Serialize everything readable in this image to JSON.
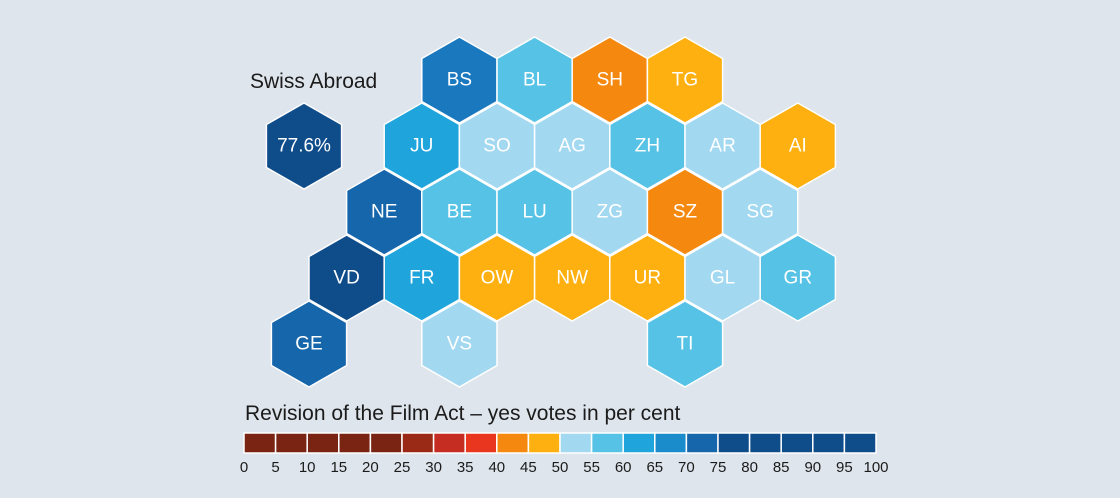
{
  "title": "Revision of the Film Act – yes votes in per cent",
  "abroad": {
    "label": "Swiss Abroad",
    "value": "77.6%",
    "color": "#0f4c8a"
  },
  "cantons": [
    {
      "code": "BS",
      "row": 0,
      "col": 4,
      "color": "#1a78bf"
    },
    {
      "code": "BL",
      "row": 0,
      "col": 6,
      "color": "#56c2e6"
    },
    {
      "code": "SH",
      "row": 0,
      "col": 8,
      "color": "#f5890f"
    },
    {
      "code": "TG",
      "row": 0,
      "col": 10,
      "color": "#fdb00f"
    },
    {
      "code": "JU",
      "row": 1,
      "col": 3,
      "color": "#1fa4dc"
    },
    {
      "code": "SO",
      "row": 1,
      "col": 5,
      "color": "#a3d8f1"
    },
    {
      "code": "AG",
      "row": 1,
      "col": 7,
      "color": "#a3d8f1"
    },
    {
      "code": "ZH",
      "row": 1,
      "col": 9,
      "color": "#56c2e6"
    },
    {
      "code": "AR",
      "row": 1,
      "col": 11,
      "color": "#a3d8f1"
    },
    {
      "code": "AI",
      "row": 1,
      "col": 13,
      "color": "#fdb00f"
    },
    {
      "code": "NE",
      "row": 2,
      "col": 2,
      "color": "#1566ab"
    },
    {
      "code": "BE",
      "row": 2,
      "col": 4,
      "color": "#56c2e6"
    },
    {
      "code": "LU",
      "row": 2,
      "col": 6,
      "color": "#56c2e6"
    },
    {
      "code": "ZG",
      "row": 2,
      "col": 8,
      "color": "#a3d8f1"
    },
    {
      "code": "SZ",
      "row": 2,
      "col": 10,
      "color": "#f5890f"
    },
    {
      "code": "SG",
      "row": 2,
      "col": 12,
      "color": "#a3d8f1"
    },
    {
      "code": "VD",
      "row": 3,
      "col": 1,
      "color": "#0f4c8a"
    },
    {
      "code": "FR",
      "row": 3,
      "col": 3,
      "color": "#1fa4dc"
    },
    {
      "code": "OW",
      "row": 3,
      "col": 5,
      "color": "#fdb00f"
    },
    {
      "code": "NW",
      "row": 3,
      "col": 7,
      "color": "#fdb00f"
    },
    {
      "code": "UR",
      "row": 3,
      "col": 9,
      "color": "#fdb00f"
    },
    {
      "code": "GL",
      "row": 3,
      "col": 11,
      "color": "#a3d8f1"
    },
    {
      "code": "GR",
      "row": 3,
      "col": 13,
      "color": "#56c2e6"
    },
    {
      "code": "GE",
      "row": 4,
      "col": 0,
      "color": "#1566ab"
    },
    {
      "code": "VS",
      "row": 4,
      "col": 4,
      "color": "#a3d8f1"
    },
    {
      "code": "TI",
      "row": 4,
      "col": 10,
      "color": "#56c2e6"
    }
  ],
  "legend": {
    "ticks": [
      "0",
      "5",
      "10",
      "15",
      "20",
      "25",
      "30",
      "35",
      "40",
      "45",
      "50",
      "55",
      "60",
      "65",
      "70",
      "75",
      "80",
      "85",
      "90",
      "95",
      "100"
    ],
    "colors": [
      "#7a2514",
      "#7a2514",
      "#7a2514",
      "#7a2514",
      "#7a2514",
      "#9a2a16",
      "#c52d22",
      "#e8361f",
      "#f5890f",
      "#fdb00f",
      "#a3d8f1",
      "#56c2e6",
      "#1fa4dc",
      "#1a8ccc",
      "#1566ab",
      "#0f4c8a",
      "#0f4c8a",
      "#0f4c8a",
      "#0f4c8a",
      "#0f4c8a"
    ]
  }
}
